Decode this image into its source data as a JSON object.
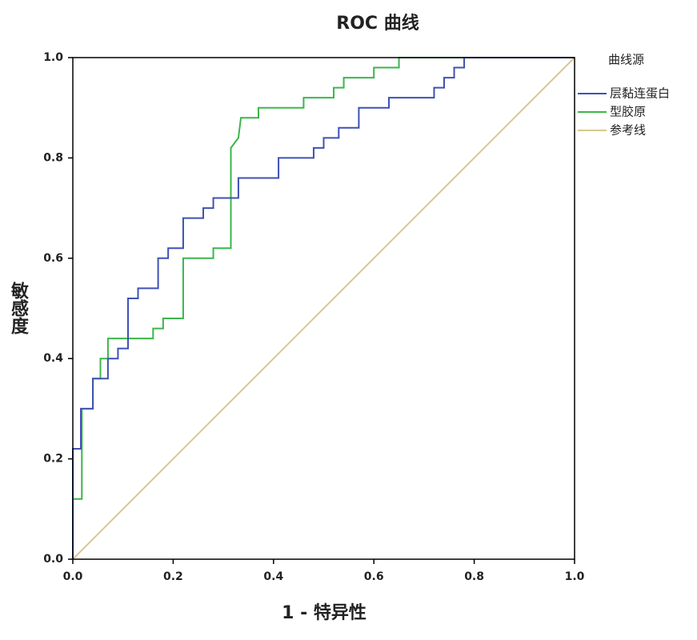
{
  "chart_data": {
    "type": "line",
    "title": "ROC 曲线",
    "x_label": "1 - 特异性",
    "y_label": "敏感度",
    "legend_title": "曲线源",
    "legend": "right",
    "xlim": [
      0,
      1
    ],
    "ylim": [
      0,
      1
    ],
    "xticks": [
      {
        "value": 0,
        "label": "0.0"
      },
      0.2,
      0.4,
      0.6,
      0.8,
      {
        "value": 1,
        "label": "1.0"
      }
    ],
    "yticks": [
      {
        "value": 0,
        "label": "0.0"
      },
      0.2,
      0.4,
      0.6,
      0.8,
      {
        "value": 1,
        "label": "1.0"
      }
    ],
    "series": [
      {
        "name": "层黏连蛋白",
        "color": "#3f51b5",
        "x": [
          0,
          0,
          0.016,
          0.016,
          0.04,
          0.04,
          0.07,
          0.07,
          0.09,
          0.09,
          0.11,
          0.11,
          0.13,
          0.13,
          0.17,
          0.17,
          0.19,
          0.19,
          0.22,
          0.22,
          0.26,
          0.26,
          0.28,
          0.28,
          0.33,
          0.33,
          0.41,
          0.41,
          0.48,
          0.48,
          0.5,
          0.5,
          0.53,
          0.53,
          0.57,
          0.57,
          0.63,
          0.63,
          0.72,
          0.72,
          0.74,
          0.74,
          0.76,
          0.76,
          0.78,
          0.78,
          1
        ],
        "values": [
          0,
          0.22,
          0.22,
          0.3,
          0.3,
          0.36,
          0.36,
          0.4,
          0.4,
          0.42,
          0.42,
          0.52,
          0.52,
          0.54,
          0.54,
          0.6,
          0.6,
          0.62,
          0.62,
          0.68,
          0.68,
          0.7,
          0.7,
          0.72,
          0.72,
          0.76,
          0.76,
          0.8,
          0.8,
          0.82,
          0.82,
          0.84,
          0.84,
          0.86,
          0.86,
          0.9,
          0.9,
          0.92,
          0.92,
          0.94,
          0.94,
          0.96,
          0.96,
          0.98,
          0.98,
          1,
          1
        ]
      },
      {
        "name": "型胶原",
        "color": "#3cb64a",
        "x": [
          0,
          0,
          0.018,
          0.018,
          0.04,
          0.04,
          0.055,
          0.055,
          0.07,
          0.07,
          0.16,
          0.16,
          0.18,
          0.18,
          0.22,
          0.22,
          0.28,
          0.28,
          0.315,
          0.315,
          0.33,
          0.335,
          0.37,
          0.37,
          0.46,
          0.46,
          0.52,
          0.52,
          0.54,
          0.54,
          0.6,
          0.6,
          0.65,
          0.65,
          1
        ],
        "values": [
          0,
          0.12,
          0.12,
          0.3,
          0.3,
          0.36,
          0.36,
          0.4,
          0.4,
          0.44,
          0.44,
          0.46,
          0.46,
          0.48,
          0.48,
          0.6,
          0.6,
          0.62,
          0.62,
          0.82,
          0.84,
          0.88,
          0.88,
          0.9,
          0.9,
          0.92,
          0.92,
          0.94,
          0.94,
          0.96,
          0.96,
          0.98,
          0.98,
          1,
          1
        ]
      },
      {
        "name": "参考线",
        "color": "#d8c88e",
        "x": [
          0,
          1
        ],
        "values": [
          0,
          1
        ]
      }
    ]
  }
}
